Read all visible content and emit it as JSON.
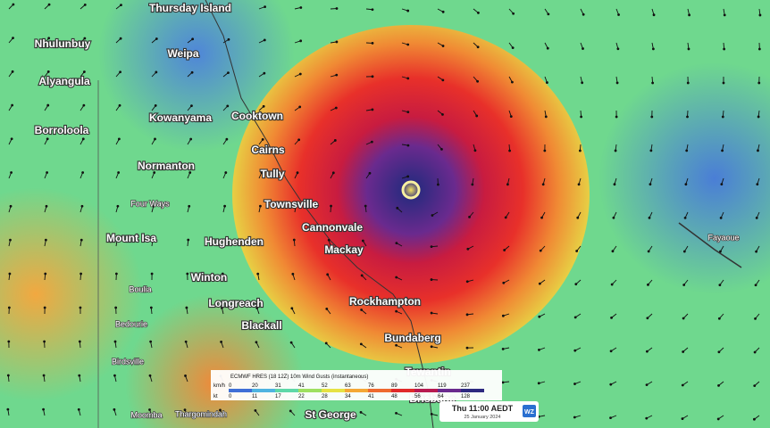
{
  "map": {
    "places": [
      "Thursday Island",
      "Nhulunbuy",
      "Weipa",
      "Alyangula",
      "Kowanyama",
      "Cooktown",
      "Borroloola",
      "Cairns",
      "Normanton",
      "Tully",
      "Four Ways",
      "Townsville",
      "Cannonvale",
      "Mount Isa",
      "Hughenden",
      "Mackay",
      "Winton",
      "Longreach",
      "Rockhampton",
      "Blackall",
      "Boulia",
      "Bedourie",
      "Bundaberg",
      "Birdsville",
      "Tewantin",
      "Brisbane",
      "St George",
      "Thargomindah",
      "Moomba",
      "Fayaoue"
    ],
    "legend": {
      "title": "ECMWF HRES (18 12Z) 10m Wind Gusts (instantaneous)",
      "units": [
        "km/h",
        "kt"
      ],
      "kmh": [
        0,
        20,
        31,
        41,
        52,
        63,
        76,
        89,
        104,
        119,
        237
      ],
      "kt": [
        0,
        11,
        17,
        22,
        28,
        34,
        41,
        48,
        56,
        64,
        128
      ],
      "colors": [
        "#3f6fd6",
        "#4fb4e0",
        "#5ed8a8",
        "#9ee060",
        "#e6e244",
        "#f4a836",
        "#ee6a30",
        "#e02a2a",
        "#b81a50",
        "#6a2a8e",
        "#2e2a80"
      ]
    },
    "time": {
      "label": "Thu 11:00 AEDT",
      "date": "25 January 2024"
    },
    "logo": "WZ"
  }
}
